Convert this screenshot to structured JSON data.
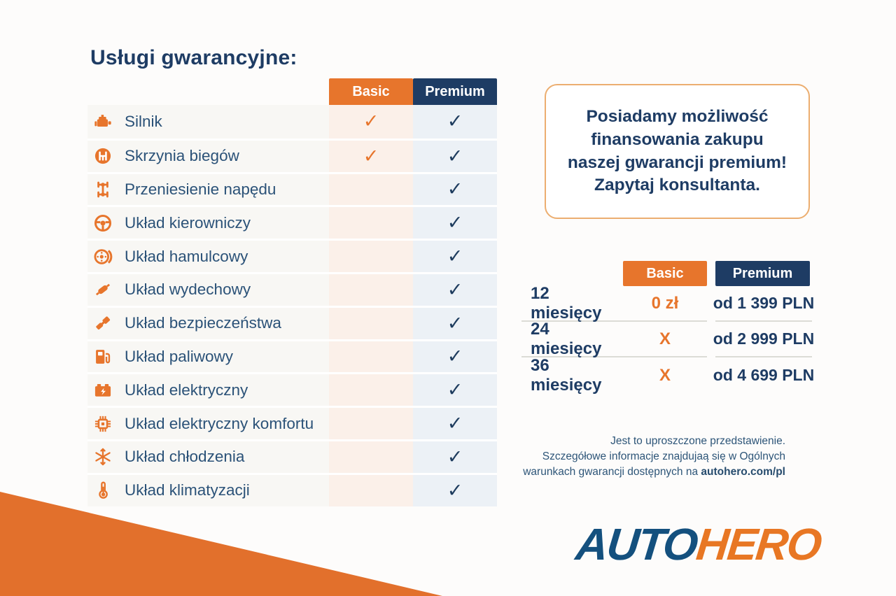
{
  "title": "Usługi gwarancyjne:",
  "feature_table": {
    "headers": {
      "basic": "Basic",
      "premium": "Premium"
    },
    "check_symbol": "✓",
    "rows": [
      {
        "icon": "engine-icon",
        "label": "Silnik",
        "basic": true,
        "premium": true
      },
      {
        "icon": "gearbox-icon",
        "label": "Skrzynia biegów",
        "basic": true,
        "premium": true
      },
      {
        "icon": "drivetrain-icon",
        "label": "Przeniesienie napędu",
        "basic": false,
        "premium": true
      },
      {
        "icon": "steering-wheel-icon",
        "label": "Układ kierowniczy",
        "basic": false,
        "premium": true
      },
      {
        "icon": "brake-disc-icon",
        "label": "Układ hamulcowy",
        "basic": false,
        "premium": true
      },
      {
        "icon": "exhaust-icon",
        "label": "Układ wydechowy",
        "basic": false,
        "premium": true
      },
      {
        "icon": "seatbelt-icon",
        "label": "Układ bezpieczeństwa",
        "basic": false,
        "premium": true
      },
      {
        "icon": "fuel-pump-icon",
        "label": "Układ paliwowy",
        "basic": false,
        "premium": true
      },
      {
        "icon": "battery-icon",
        "label": "Układ elektryczny",
        "basic": false,
        "premium": true
      },
      {
        "icon": "chip-icon",
        "label": "Układ elektryczny komfortu",
        "basic": false,
        "premium": true
      },
      {
        "icon": "snowflake-icon",
        "label": "Układ chłodzenia",
        "basic": false,
        "premium": true
      },
      {
        "icon": "thermometer-icon",
        "label": "Układ klimatyzacji",
        "basic": false,
        "premium": true
      }
    ]
  },
  "promo_box": {
    "text": "Posiadamy możliwość\nfinansowania zakupu\nnaszej gwarancji premium!\nZapytaj konsultanta."
  },
  "pricing_table": {
    "headers": {
      "basic": "Basic",
      "premium": "Premium"
    },
    "rows": [
      {
        "period": "12 miesięcy",
        "basic": "0 zł",
        "premium": "od 1 399 PLN"
      },
      {
        "period": "24 miesięcy",
        "basic": "X",
        "premium": "od 2 999 PLN"
      },
      {
        "period": "36 miesięcy",
        "basic": "X",
        "premium": "od 4 699 PLN"
      }
    ]
  },
  "disclaimer": {
    "line1": "Jest to uproszczone przedstawienie.",
    "line2": "Szczegółowe informacje znajdujaą się w Ogólnych",
    "line3_text": "warunkach gwarancji dostępnych na ",
    "line3_link": "autohero.com/pl"
  },
  "logo": {
    "auto": "AUTO",
    "hero": "HERO"
  },
  "colors": {
    "orange": "#E7752C",
    "orange_deep": "#E2702C",
    "navy": "#1E3C64",
    "navy_text": "#2B5278",
    "basic_col_bg": "#FBF0E9",
    "premium_col_bg": "#ECF1F6",
    "label_col_bg": "#F8F7F4",
    "promo_border": "#ECAE70"
  }
}
